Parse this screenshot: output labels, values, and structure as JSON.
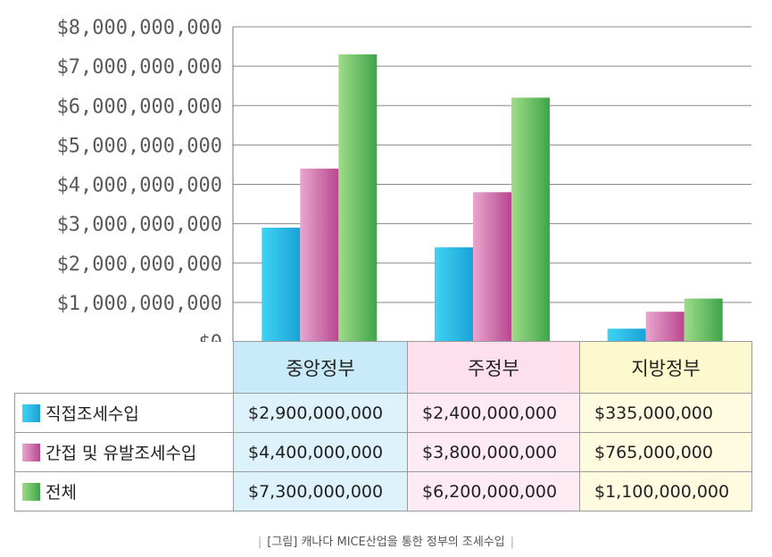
{
  "chart_data": {
    "type": "bar",
    "categories": [
      "중앙정부",
      "주정부",
      "지방정부"
    ],
    "series": [
      {
        "name": "직접조세수입",
        "values": [
          2900000000,
          2400000000,
          335000000
        ],
        "labels": [
          "$2,900,000,000",
          "$2,400,000,000",
          "$335,000,000"
        ]
      },
      {
        "name": "간접 및 유발조세수입",
        "values": [
          4400000000,
          3800000000,
          765000000
        ],
        "labels": [
          "$4,400,000,000",
          "$3,800,000,000",
          "$765,000,000"
        ]
      },
      {
        "name": "전체",
        "values": [
          7300000000,
          6200000000,
          1100000000
        ],
        "labels": [
          "$7,300,000,000",
          "$6,200,000,000",
          "$1,100,000,000"
        ]
      }
    ],
    "yticks": [
      "$0",
      "$1,000,000,000",
      "$2,000,000,000",
      "$3,000,000,000",
      "$4,000,000,000",
      "$5,000,000,000",
      "$6,000,000,000",
      "$7,000,000,000",
      "$8,000,000,000"
    ],
    "ylim": [
      0,
      8000000000
    ],
    "grid": true,
    "legend": "data-table"
  },
  "colors": {
    "series": [
      [
        "#3fd3f3",
        "#1aa2d8"
      ],
      [
        "#e9a6cf",
        "#b8478f"
      ],
      [
        "#9fdc88",
        "#3ea54a"
      ]
    ],
    "category_headers": [
      "#c8eaf9",
      "#fde0ec",
      "#fdf9cf"
    ],
    "category_cells": [
      "#ddf2fb",
      "#fdeaf2",
      "#fefbe0"
    ]
  },
  "caption": "[그림] 캐나다 MICE산업을 통한 정부의 조세수입"
}
